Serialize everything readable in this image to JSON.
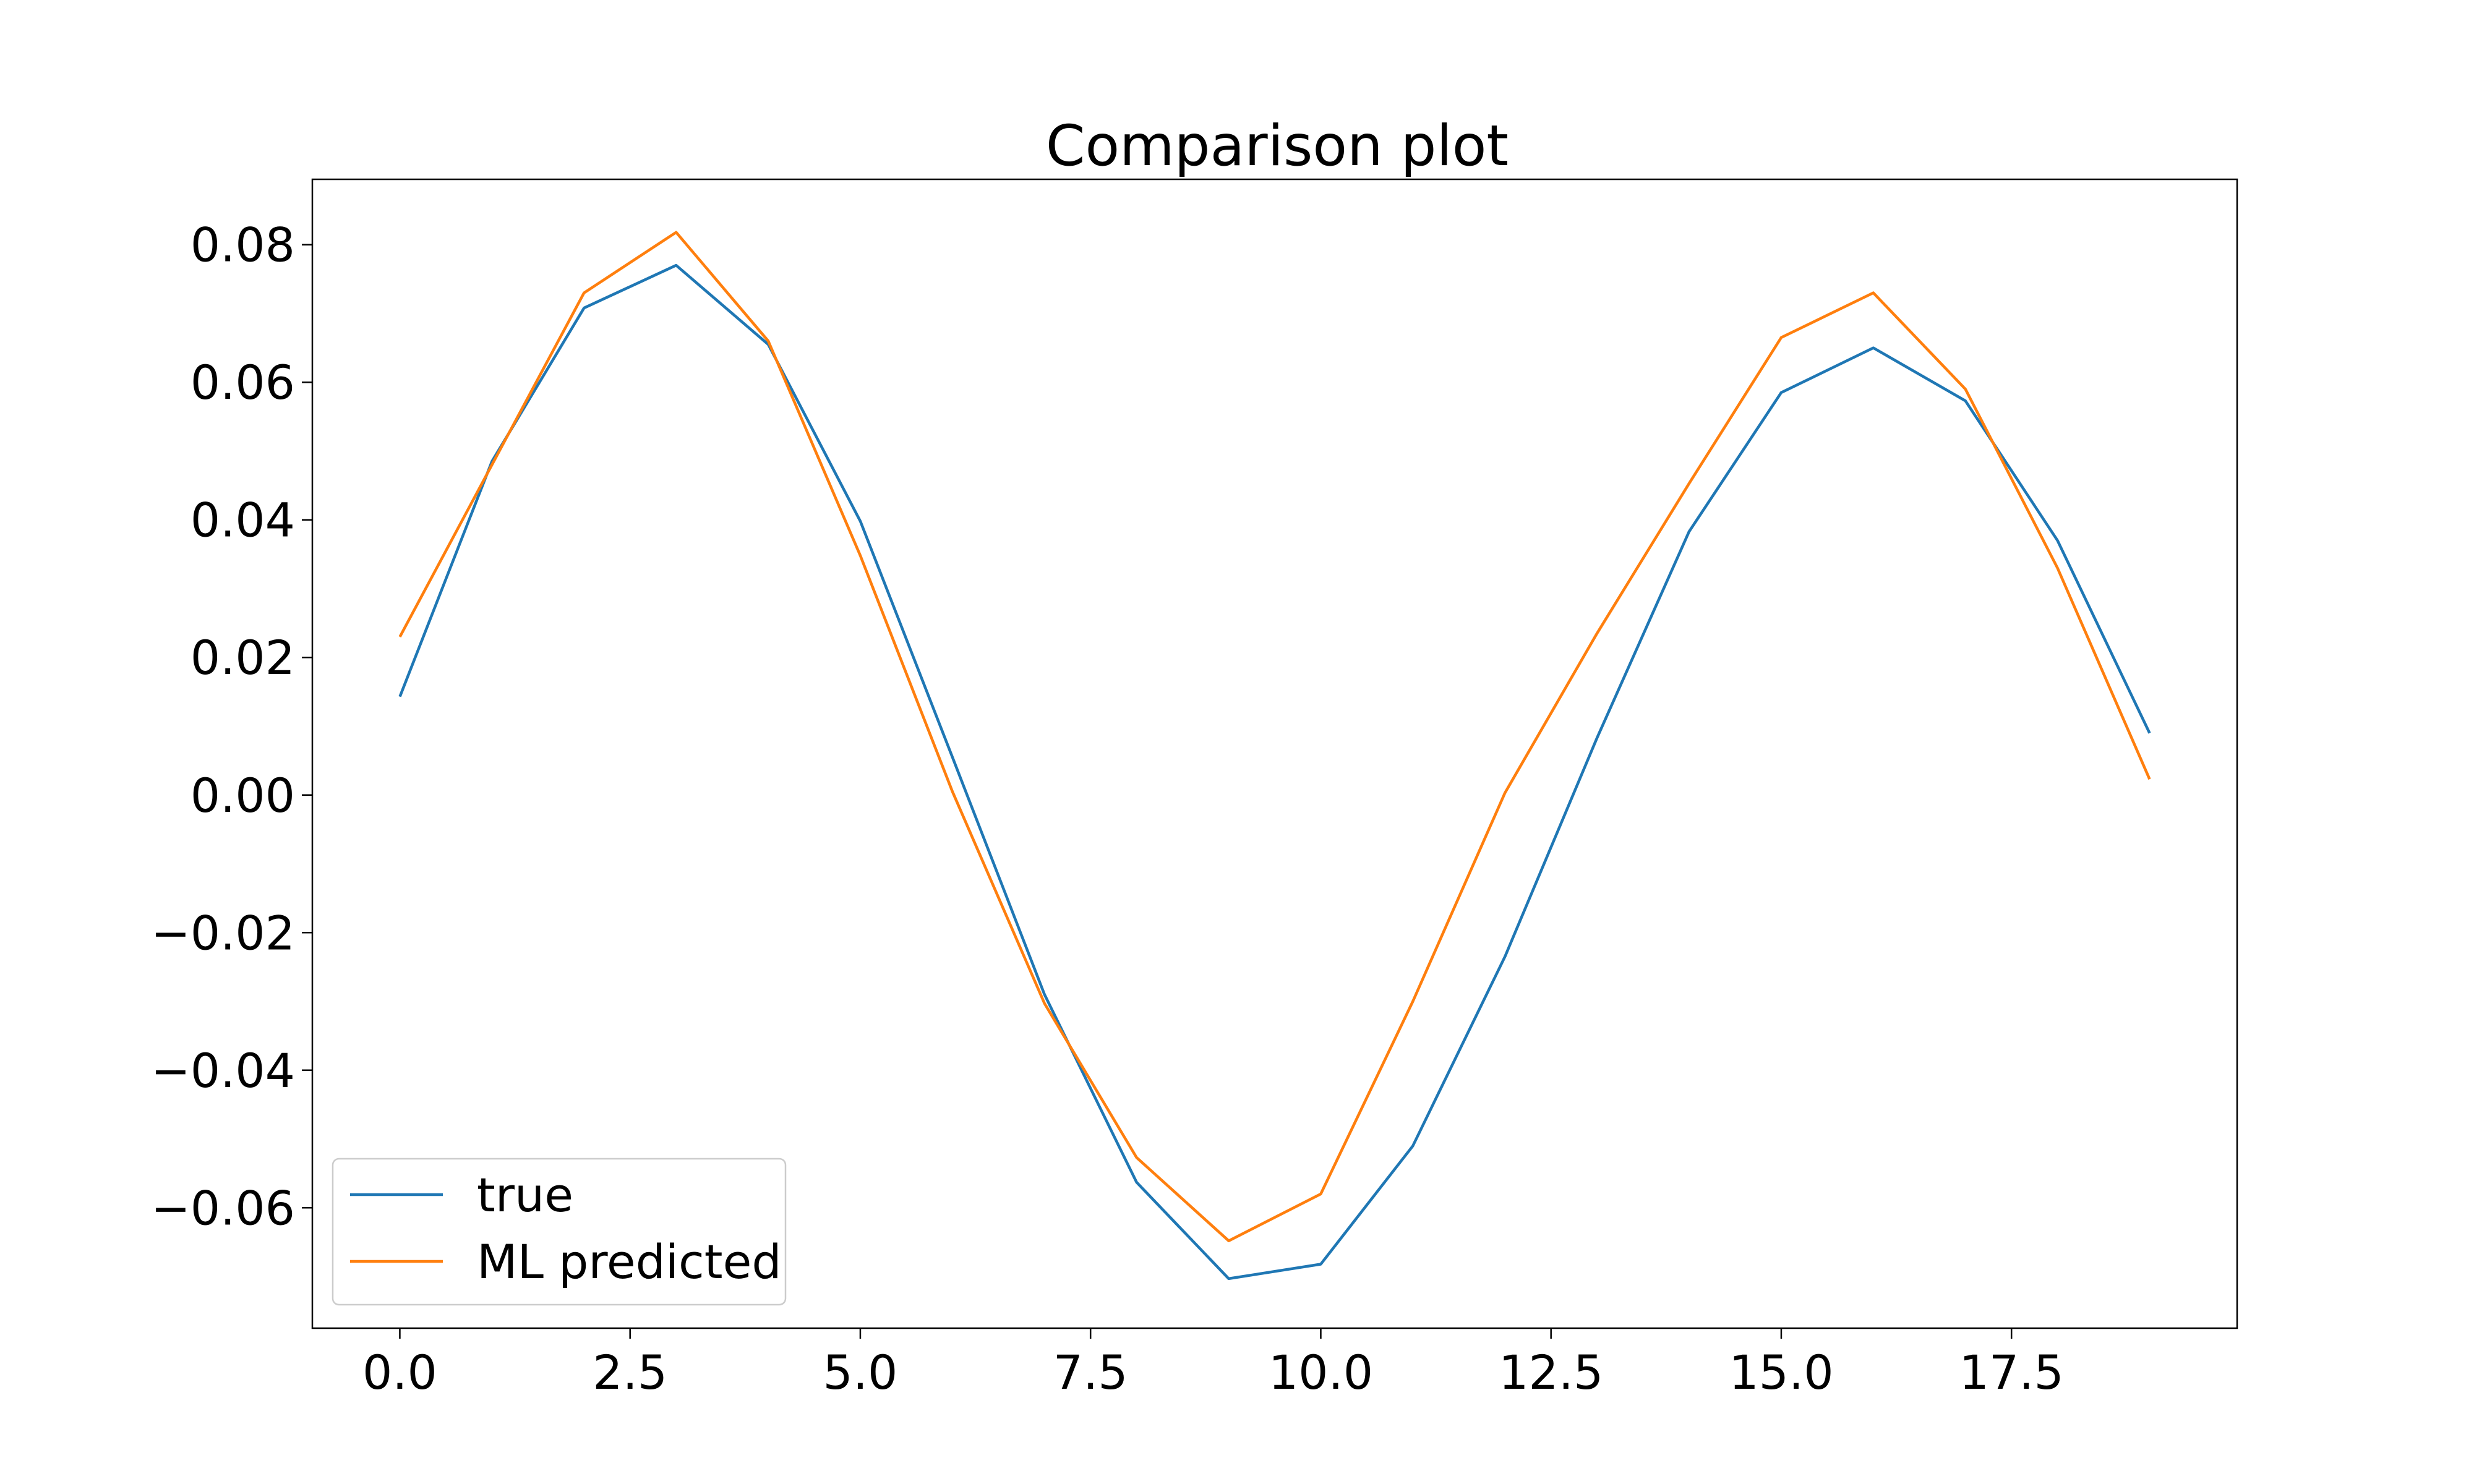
{
  "chart_data": {
    "type": "line",
    "title": "Comparison plot",
    "xlabel": "",
    "ylabel": "",
    "xlim": [
      -0.95,
      19.95
    ],
    "ylim": [
      -0.0775,
      0.0895
    ],
    "x": [
      0,
      1,
      2,
      3,
      4,
      5,
      6,
      7,
      8,
      9,
      10,
      11,
      12,
      13,
      14,
      15,
      16,
      17,
      18,
      19
    ],
    "x_ticks": [
      0.0,
      2.5,
      5.0,
      7.5,
      10.0,
      12.5,
      15.0,
      17.5
    ],
    "x_tick_labels": [
      "0.0",
      "2.5",
      "5.0",
      "7.5",
      "10.0",
      "12.5",
      "15.0",
      "17.5"
    ],
    "y_ticks": [
      -0.06,
      -0.04,
      -0.02,
      0.0,
      0.02,
      0.04,
      0.06,
      0.08
    ],
    "y_tick_labels": [
      "−0.06",
      "−0.04",
      "−0.02",
      "0.00",
      "0.02",
      "0.04",
      "0.06",
      "0.08"
    ],
    "grid": false,
    "legend_position": "lower-left",
    "series": [
      {
        "name": "true",
        "color": "#1f77b4",
        "values": [
          0.0143,
          0.0485,
          0.0708,
          0.077,
          0.0655,
          0.0398,
          0.0055,
          -0.029,
          -0.0563,
          -0.0703,
          -0.0682,
          -0.051,
          -0.0235,
          0.0083,
          0.0383,
          0.0585,
          0.065,
          0.0573,
          0.037,
          0.009
        ]
      },
      {
        "name": "ML predicted",
        "color": "#ff7f0e",
        "values": [
          0.023,
          0.048,
          0.073,
          0.0818,
          0.066,
          0.0348,
          0.0005,
          -0.0303,
          -0.0527,
          -0.0648,
          -0.058,
          -0.03,
          0.0003,
          0.0235,
          0.0453,
          0.0665,
          0.073,
          0.059,
          0.033,
          0.0023
        ]
      }
    ]
  }
}
